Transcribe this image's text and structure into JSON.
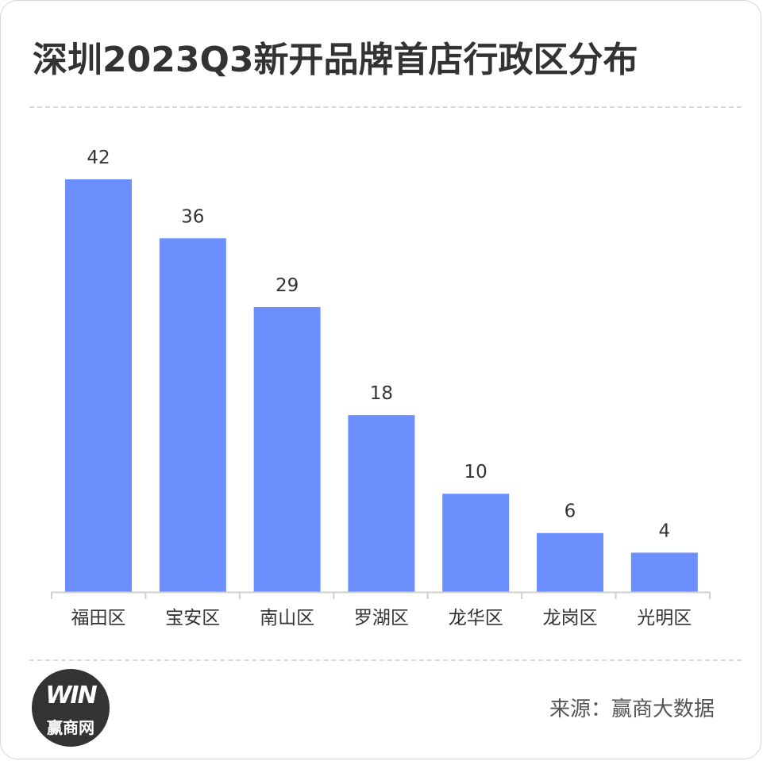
{
  "title": "深圳2023Q3新开品牌首店行政区分布",
  "source": "来源：赢商大数据",
  "logo": {
    "mark": "WIN",
    "text": "赢商网"
  },
  "colors": {
    "bar": "#6b8ffd",
    "axis": "#d0d0d0",
    "label": "#333333"
  },
  "chart_data": {
    "type": "bar",
    "title": "深圳2023Q3新开品牌首店行政区分布",
    "categories": [
      "福田区",
      "宝安区",
      "南山区",
      "罗湖区",
      "龙华区",
      "龙岗区",
      "光明区"
    ],
    "values": [
      42,
      36,
      29,
      18,
      10,
      6,
      4
    ],
    "xlabel": "",
    "ylabel": "",
    "ylim": [
      0,
      42
    ],
    "grid": false,
    "legend": "none"
  }
}
